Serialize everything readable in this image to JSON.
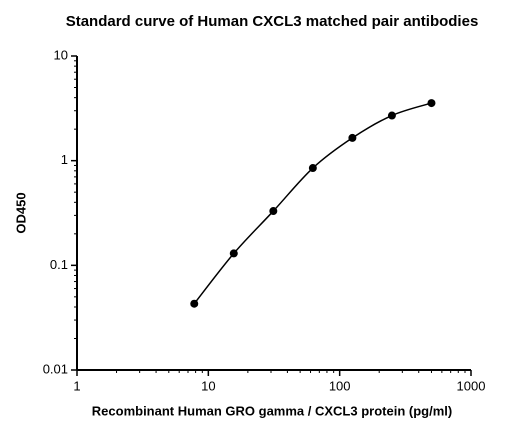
{
  "chart_data": {
    "type": "scatter",
    "title": "Standard curve of Human CXCL3 matched pair antibodies",
    "x_label": "Recombinant Human GRO gamma / CXCL3 protein (pg/ml)",
    "y_label": "OD450",
    "x": [
      7.8125,
      15.625,
      31.25,
      62.5,
      125,
      250,
      500
    ],
    "series": [
      {
        "color": "#000000",
        "values": [
          0.043,
          0.13,
          0.33,
          0.85,
          1.65,
          2.7,
          3.55
        ]
      }
    ],
    "xlim": [
      1,
      1000
    ],
    "ylim": [
      0.01,
      10
    ],
    "xticks": [
      1,
      10,
      100,
      1000
    ],
    "yticks": [
      0.01,
      0.1,
      1,
      10
    ],
    "x_log": true,
    "y_log": true,
    "fit_curve": true
  }
}
